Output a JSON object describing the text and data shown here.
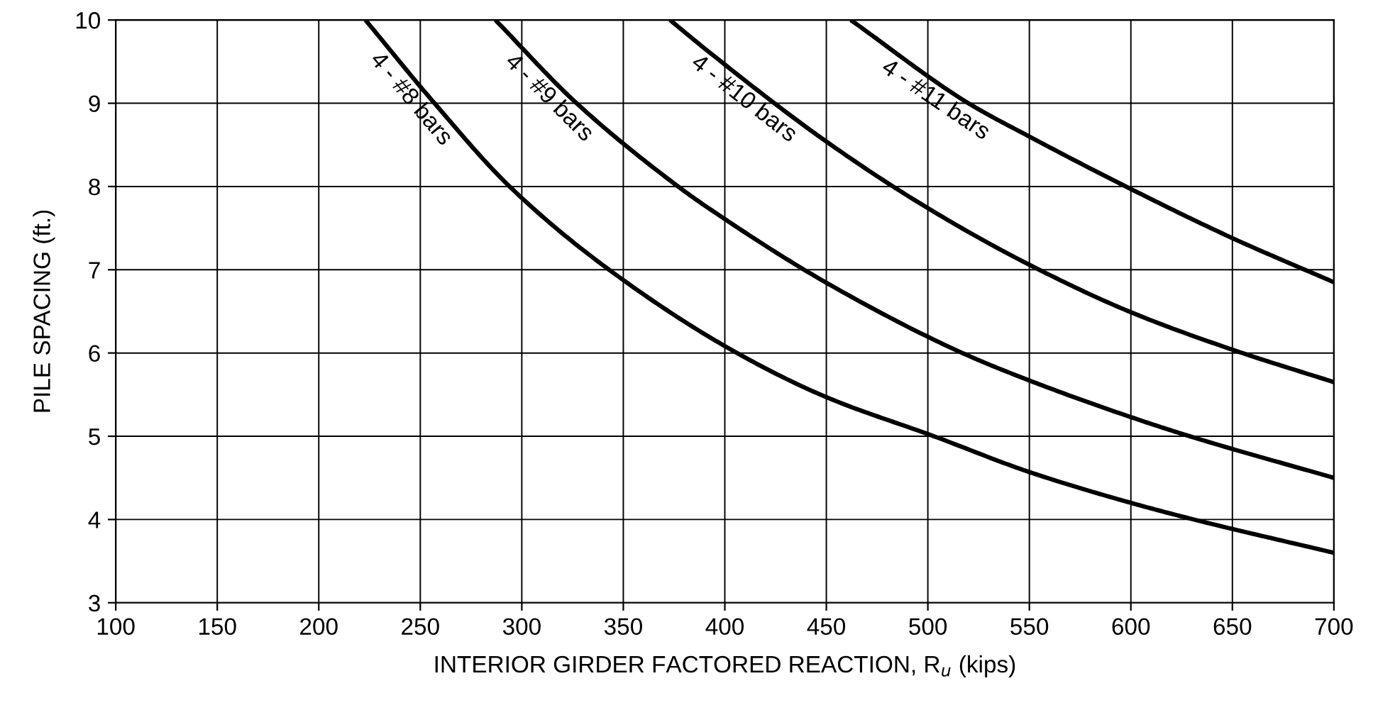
{
  "chart_data": {
    "type": "line",
    "xlabel": "INTERIOR GIRDER FACTORED REACTION, R$_{u}$ (kips)",
    "ylabel": "PILE SPACING (ft.)",
    "series": [
      {
        "name": "4 - #8 bars",
        "color": "#000000",
        "x": [
          223,
          257,
          294,
          343,
          406,
          450,
          503,
          550,
          600,
          631,
          700
        ],
        "values": [
          10,
          9,
          8,
          7,
          6,
          5.47,
          5,
          4.57,
          4.2,
          4,
          3.6
        ]
      },
      {
        "name": "4 - #9 bars",
        "color": "#000000",
        "x": [
          287,
          327,
          377,
          392,
          451,
          517,
          550,
          600,
          629,
          700
        ],
        "values": [
          10,
          9,
          8,
          7.74,
          6.83,
          6,
          5.67,
          5.23,
          5,
          4.5
        ]
      },
      {
        "name": "4 - #10 bars",
        "color": "#000000",
        "x": [
          373,
          392,
          450,
          500,
          550,
          600,
          650,
          700
        ],
        "values": [
          10,
          9.62,
          8.54,
          7.74,
          7.06,
          6.49,
          6.04,
          5.65
        ]
      },
      {
        "name": "4 - #11 bars",
        "color": "#000000",
        "x": [
          462,
          520,
          550,
          600,
          650,
          700
        ],
        "values": [
          10,
          9,
          8.6,
          7.97,
          7.38,
          6.85
        ]
      }
    ],
    "xlim": [
      100,
      700
    ],
    "xticks": [
      100,
      150,
      200,
      250,
      300,
      350,
      400,
      450,
      500,
      550,
      600,
      650,
      700
    ],
    "ylim": [
      3,
      10
    ],
    "yticks": [
      3,
      4,
      5,
      6,
      7,
      8,
      9,
      10
    ],
    "grid": true,
    "marker": "none",
    "line_style": "solid"
  }
}
